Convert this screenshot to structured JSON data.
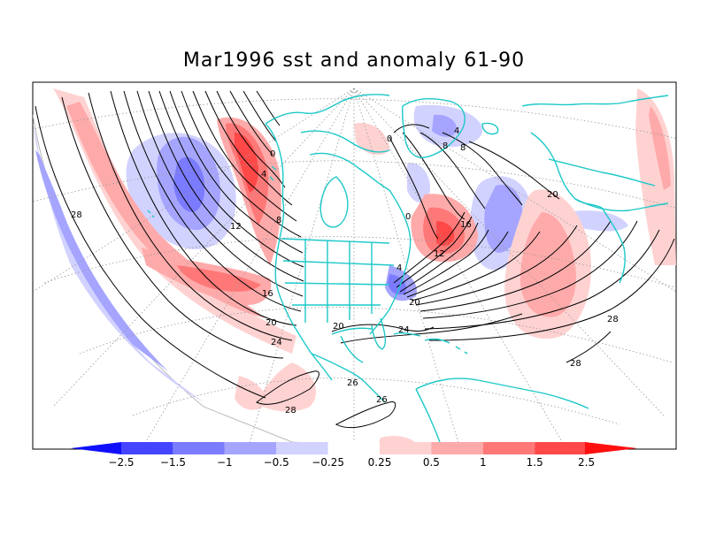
{
  "title": "Mar1996 sst and anomaly 61-90",
  "colorbar": {
    "labels": [
      "-2.5",
      "-1.5",
      "-1",
      "-0.5",
      "-0.25",
      "0.25",
      "0.5",
      "1",
      "1.5",
      "2.5"
    ],
    "colors": [
      "#1010ff",
      "#4545ff",
      "#7b7bff",
      "#a5a5ff",
      "#d2d2ff",
      "#ffffff",
      "#ffd2d2",
      "#ffaaaa",
      "#ff7878",
      "#ff4848",
      "#ff1010"
    ]
  },
  "contour_labels": {
    "pacific": [
      "28",
      "12",
      "8",
      "4",
      "0",
      "16",
      "20",
      "24",
      "28",
      "26"
    ],
    "atlantic": [
      "0",
      "4",
      "8",
      "8",
      "16",
      "12",
      "4",
      "0",
      "20",
      "24",
      "20",
      "26",
      "28",
      "28"
    ],
    "gulf": [
      "20"
    ]
  },
  "colors": {
    "coast": "#1ec8c8",
    "contour": "#000000",
    "grid": "#999999"
  }
}
